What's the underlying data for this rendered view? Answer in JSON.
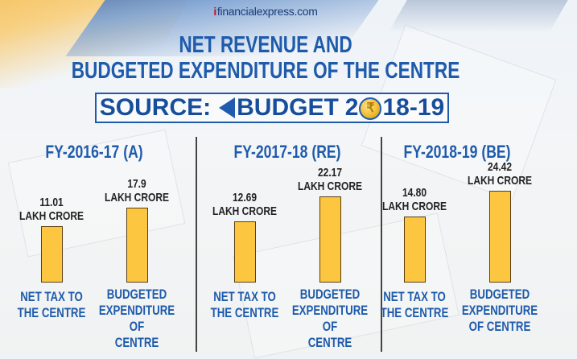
{
  "brand": {
    "mark": "i",
    "name": "financialexpress.com"
  },
  "header": {
    "title_line1": "NET REVENUE AND",
    "title_line2": "BUDGETED EXPENDITURE OF THE CENTRE",
    "source_label": "SOURCE:",
    "source_budget": "BUDGET",
    "source_year_pre": "2",
    "source_coin_glyph": "₹",
    "source_year_post": "18-19"
  },
  "colors": {
    "title_blue": "#1e5bab",
    "bar_yellow": "#fcc640",
    "bar_border": "#5a3e12",
    "value_text": "#222222"
  },
  "chart_data": {
    "type": "bar",
    "title": "NET REVENUE AND BUDGETED EXPENDITURE OF THE CENTRE",
    "subtitle": "SOURCE: BUDGET 2018-19",
    "unit": "LAKH CRORE",
    "categories": [
      "NET TAX TO THE CENTRE",
      "BUDGETED EXPENDITURE OF CENTRE"
    ],
    "groups": [
      {
        "label": "FY-2016-17 (A)",
        "values": [
          11.01,
          17.9
        ],
        "value_labels": [
          "11.01",
          "17.9"
        ],
        "category_labels": [
          [
            "NET TAX TO",
            "THE CENTRE"
          ],
          [
            "BUDGETED",
            "EXPENDITURE OF",
            "CENTRE"
          ]
        ]
      },
      {
        "label": "FY-2017-18 (RE)",
        "values": [
          12.69,
          22.17
        ],
        "value_labels": [
          "12.69",
          "22.17"
        ],
        "category_labels": [
          [
            "NET TAX TO",
            "THE CENTRE"
          ],
          [
            "BUDGETED",
            "EXPENDITURE OF",
            "CENTRE"
          ]
        ]
      },
      {
        "label": "FY-2018-19 (BE)",
        "values": [
          14.8,
          24.42
        ],
        "value_labels": [
          "14.80",
          "24.42"
        ],
        "category_labels": [
          [
            "NET TAX TO",
            "THE CENTRE"
          ],
          [
            "BUDGETED",
            "EXPENDITURE",
            "OF CENTRE"
          ]
        ]
      }
    ],
    "xlabel": "",
    "ylabel": "",
    "grid": false,
    "legend": "none"
  }
}
